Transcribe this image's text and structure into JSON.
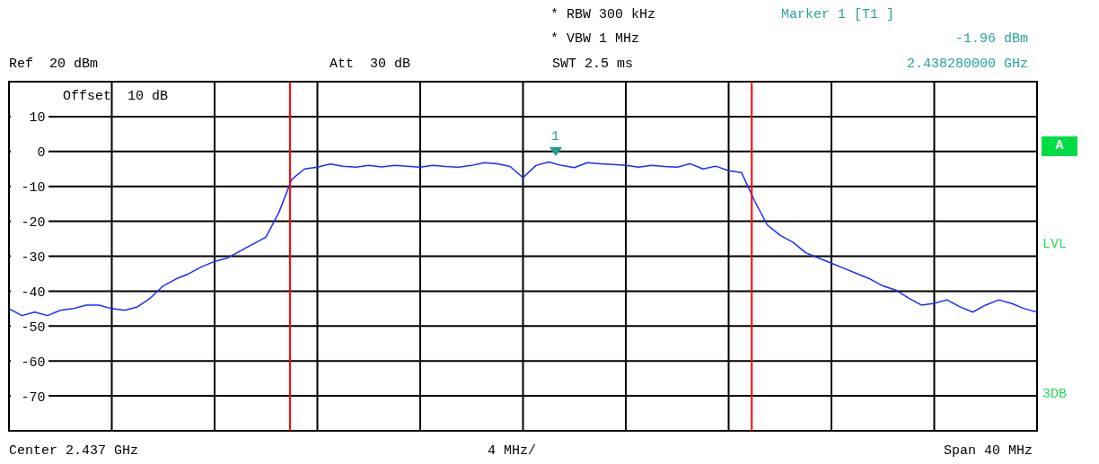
{
  "chart_data": {
    "type": "line",
    "categories": [
      null,
      null,
      null,
      null,
      null,
      null,
      null,
      null,
      null,
      null,
      null,
      null,
      null,
      null,
      null,
      null,
      null,
      null,
      null,
      null,
      null,
      null,
      null,
      null,
      null,
      null,
      null,
      null,
      null,
      null,
      null,
      null,
      null,
      null,
      null,
      null,
      null,
      null,
      null,
      null,
      null,
      null,
      null,
      null,
      null,
      null,
      null,
      null,
      null,
      null,
      null,
      null,
      null,
      null,
      null,
      null,
      null,
      null,
      null,
      null,
      null,
      null,
      null,
      null,
      null,
      null,
      null,
      null,
      null,
      null,
      null,
      null,
      null,
      null,
      null,
      null,
      null,
      null,
      null,
      null,
      null
    ],
    "series": [
      {
        "color": "#1a2cff",
        "values": [
          -45,
          -47,
          -46,
          -47,
          -45.5,
          -45,
          -44,
          -44,
          -45,
          -45.5,
          -44.5,
          -42,
          -38.5,
          -36.5,
          -35,
          -33,
          -31.5,
          -30.5,
          -28.5,
          -26.5,
          -24.5,
          -17.5,
          -8,
          -5,
          -4.5,
          -3.6,
          -4.2,
          -4.5,
          -4,
          -4.4,
          -4,
          -4.2,
          -4.5,
          -4,
          -4.3,
          -4.5,
          -4,
          -3.2,
          -3.5,
          -4.3,
          -7.5,
          -4,
          -3,
          -4,
          -4.6,
          -3.2,
          -3.5,
          -3.7,
          -4,
          -4.5,
          -4,
          -4.3,
          -4.5,
          -3.5,
          -5,
          -4.2,
          -5.5,
          -6,
          -14,
          -21,
          -24,
          -26,
          -29,
          -30.5,
          -32,
          -33.5,
          -35,
          -36.5,
          -38.5,
          -39.7,
          -42,
          -44,
          -43.5,
          -42.5,
          -44.5,
          -46,
          -44,
          -42.5,
          -43.5,
          -45,
          -46
        ]
      }
    ],
    "ylim": [
      -80,
      20
    ],
    "yticks": [
      -70,
      -60,
      -50,
      -40,
      -30,
      -20,
      -10,
      0,
      10
    ],
    "tick_labels": "y",
    "grid": true,
    "annotations": [
      "* RBW 300 kHz",
      "Marker 1 [T1 ]",
      "* VBW 1 MHz",
      "-1.96 dBm",
      "Ref  20 dBm",
      "Att  30 dB",
      "SWT 2.5 ms",
      "2.438280000 GHz",
      "Offset  10 dB",
      "A",
      "LVL",
      "3DB",
      "Center 2.437 GHz",
      "4 MHz/",
      "Span 40 MHz",
      "1"
    ]
  }
}
